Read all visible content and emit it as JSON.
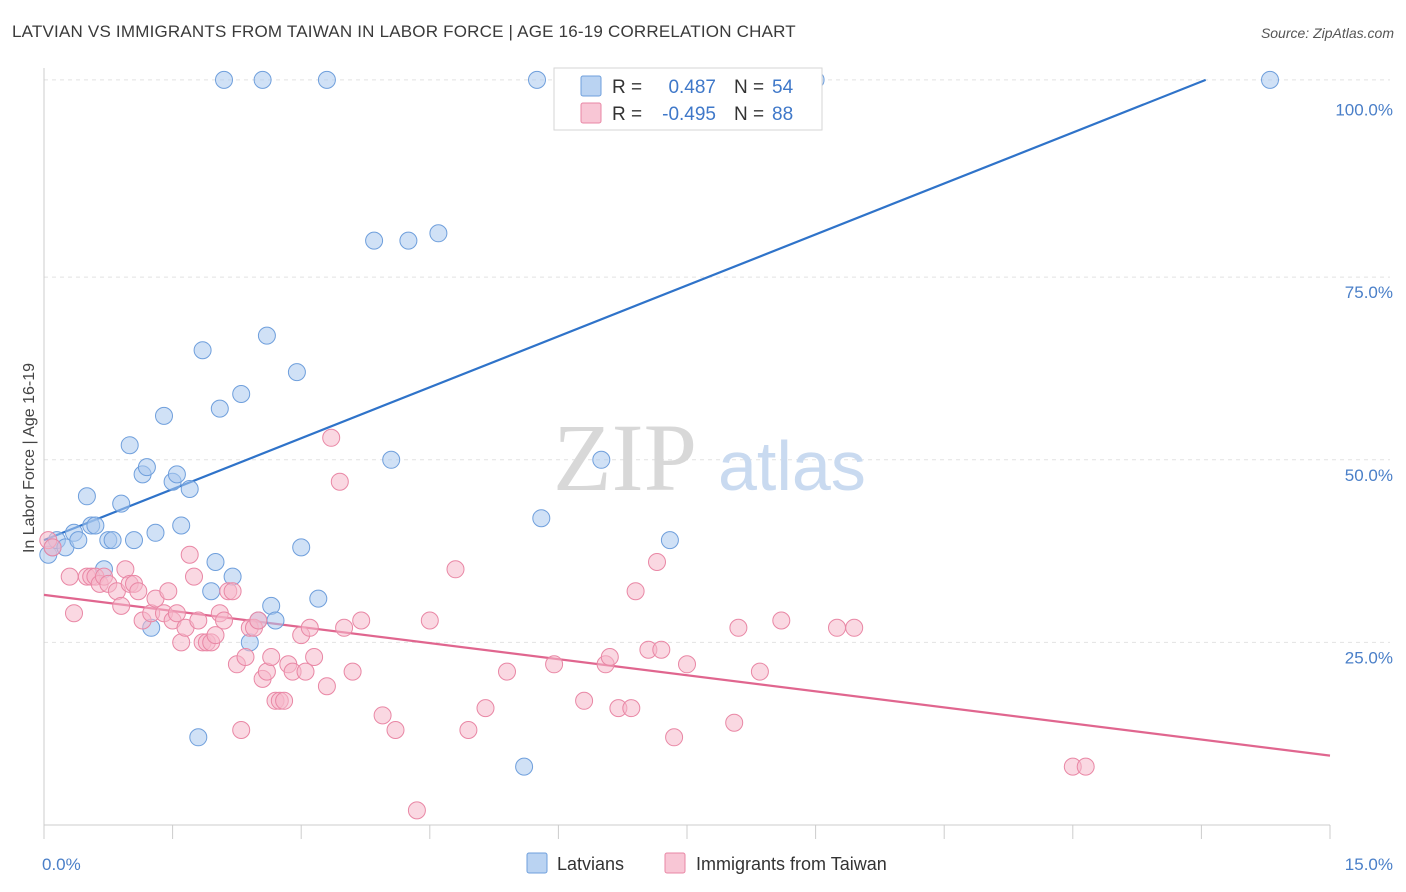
{
  "header": {
    "title": "LATVIAN VS IMMIGRANTS FROM TAIWAN IN LABOR FORCE | AGE 16-19 CORRELATION CHART",
    "source": "Source: ZipAtlas.com"
  },
  "watermark": {
    "part1": "ZIP",
    "part2": "atlas"
  },
  "legend_box": {
    "rows": [
      {
        "r_label": "R =",
        "r_value": "0.487",
        "n_label": "N =",
        "n_value": "54",
        "color": "#a9c8ef"
      },
      {
        "r_label": "R =",
        "r_value": "-0.495",
        "n_label": "N =",
        "n_value": "88",
        "color": "#f6b8ca"
      }
    ]
  },
  "bottom_legend": [
    {
      "label": "Latvians",
      "color": "#a9c8ef"
    },
    {
      "label": "Immigrants from Taiwan",
      "color": "#f6b8ca"
    }
  ],
  "chart_data": {
    "type": "scatter",
    "ylabel": "In Labor Force | Age 16-19",
    "xlim": [
      0,
      15
    ],
    "ylim": [
      0,
      105
    ],
    "x_tick_labels": [
      {
        "value": 0,
        "label": "0.0%"
      },
      {
        "value": 15,
        "label": "15.0%"
      }
    ],
    "y_tick_labels": [
      {
        "value": 25,
        "label": "25.0%"
      },
      {
        "value": 50,
        "label": "50.0%"
      },
      {
        "value": 75,
        "label": "75.0%"
      },
      {
        "value": 100,
        "label": "100.0%"
      }
    ],
    "gridlines_y": [
      25,
      50,
      75,
      102
    ],
    "grid": true,
    "series": [
      {
        "name": "Latvians",
        "color": "#a9c8ef",
        "stroke": "#6f9fdc",
        "trend_color": "#2f73c9",
        "trend": {
          "x": [
            0,
            13.55
          ],
          "y": [
            39.0,
            102.0
          ]
        },
        "points": [
          [
            0.05,
            37
          ],
          [
            0.1,
            38
          ],
          [
            0.15,
            39
          ],
          [
            0.25,
            38
          ],
          [
            0.35,
            40
          ],
          [
            0.4,
            39
          ],
          [
            0.5,
            45
          ],
          [
            0.55,
            41
          ],
          [
            0.6,
            41
          ],
          [
            0.7,
            35
          ],
          [
            0.75,
            39
          ],
          [
            0.8,
            39
          ],
          [
            0.9,
            44
          ],
          [
            1.0,
            52
          ],
          [
            1.05,
            39
          ],
          [
            1.15,
            48
          ],
          [
            1.2,
            49
          ],
          [
            1.25,
            27
          ],
          [
            1.3,
            40
          ],
          [
            1.4,
            56
          ],
          [
            1.5,
            47
          ],
          [
            1.55,
            48
          ],
          [
            1.7,
            46
          ],
          [
            1.6,
            41
          ],
          [
            1.8,
            12
          ],
          [
            1.85,
            65
          ],
          [
            1.95,
            32
          ],
          [
            2.0,
            36
          ],
          [
            2.05,
            57
          ],
          [
            2.1,
            102
          ],
          [
            2.2,
            34
          ],
          [
            2.3,
            59
          ],
          [
            2.4,
            25
          ],
          [
            2.5,
            28
          ],
          [
            2.55,
            102
          ],
          [
            2.6,
            67
          ],
          [
            2.65,
            30
          ],
          [
            2.7,
            28
          ],
          [
            2.95,
            62
          ],
          [
            3.0,
            38
          ],
          [
            3.2,
            31
          ],
          [
            3.3,
            102
          ],
          [
            3.85,
            80
          ],
          [
            4.05,
            50
          ],
          [
            4.25,
            80
          ],
          [
            4.6,
            81
          ],
          [
            5.6,
            8
          ],
          [
            5.8,
            42
          ],
          [
            5.75,
            102
          ],
          [
            6.5,
            50
          ],
          [
            7.3,
            39
          ],
          [
            7.2,
            102
          ],
          [
            9.0,
            102
          ],
          [
            14.3,
            102
          ]
        ]
      },
      {
        "name": "Immigrants from Taiwan",
        "color": "#f6b8ca",
        "stroke": "#e987a5",
        "trend_color": "#e0668f",
        "trend": {
          "x": [
            0,
            15
          ],
          "y": [
            31.5,
            9.5
          ]
        },
        "points": [
          [
            0.05,
            39
          ],
          [
            0.1,
            38
          ],
          [
            0.3,
            34
          ],
          [
            0.35,
            29
          ],
          [
            0.5,
            34
          ],
          [
            0.55,
            34
          ],
          [
            0.6,
            34
          ],
          [
            0.65,
            33
          ],
          [
            0.7,
            34
          ],
          [
            0.75,
            33
          ],
          [
            0.85,
            32
          ],
          [
            0.9,
            30
          ],
          [
            0.95,
            35
          ],
          [
            1.0,
            33
          ],
          [
            1.05,
            33
          ],
          [
            1.1,
            32
          ],
          [
            1.15,
            28
          ],
          [
            1.25,
            29
          ],
          [
            1.3,
            31
          ],
          [
            1.4,
            29
          ],
          [
            1.45,
            32
          ],
          [
            1.5,
            28
          ],
          [
            1.55,
            29
          ],
          [
            1.6,
            25
          ],
          [
            1.65,
            27
          ],
          [
            1.7,
            37
          ],
          [
            1.75,
            34
          ],
          [
            1.8,
            28
          ],
          [
            1.85,
            25
          ],
          [
            1.9,
            25
          ],
          [
            1.95,
            25
          ],
          [
            2.0,
            26
          ],
          [
            2.05,
            29
          ],
          [
            2.1,
            28
          ],
          [
            2.15,
            32
          ],
          [
            2.2,
            32
          ],
          [
            2.25,
            22
          ],
          [
            2.3,
            13
          ],
          [
            2.35,
            23
          ],
          [
            2.4,
            27
          ],
          [
            2.45,
            27
          ],
          [
            2.5,
            28
          ],
          [
            2.55,
            20
          ],
          [
            2.6,
            21
          ],
          [
            2.65,
            23
          ],
          [
            2.7,
            17
          ],
          [
            2.75,
            17
          ],
          [
            2.8,
            17
          ],
          [
            2.85,
            22
          ],
          [
            2.9,
            21
          ],
          [
            3.0,
            26
          ],
          [
            3.05,
            21
          ],
          [
            3.1,
            27
          ],
          [
            3.15,
            23
          ],
          [
            3.3,
            19
          ],
          [
            3.35,
            53
          ],
          [
            3.45,
            47
          ],
          [
            3.5,
            27
          ],
          [
            3.6,
            21
          ],
          [
            3.7,
            28
          ],
          [
            3.95,
            15
          ],
          [
            4.1,
            13
          ],
          [
            4.35,
            2
          ],
          [
            4.5,
            28
          ],
          [
            4.8,
            35
          ],
          [
            4.95,
            13
          ],
          [
            5.15,
            16
          ],
          [
            5.4,
            21
          ],
          [
            5.95,
            22
          ],
          [
            6.3,
            17
          ],
          [
            6.55,
            22
          ],
          [
            6.6,
            23
          ],
          [
            6.7,
            16
          ],
          [
            6.85,
            16
          ],
          [
            6.9,
            32
          ],
          [
            7.05,
            24
          ],
          [
            7.15,
            36
          ],
          [
            7.2,
            24
          ],
          [
            7.35,
            12
          ],
          [
            7.5,
            22
          ],
          [
            8.05,
            14
          ],
          [
            8.1,
            27
          ],
          [
            8.35,
            21
          ],
          [
            8.6,
            28
          ],
          [
            9.25,
            27
          ],
          [
            9.45,
            27
          ],
          [
            12.0,
            8
          ],
          [
            12.15,
            8
          ]
        ]
      }
    ]
  }
}
